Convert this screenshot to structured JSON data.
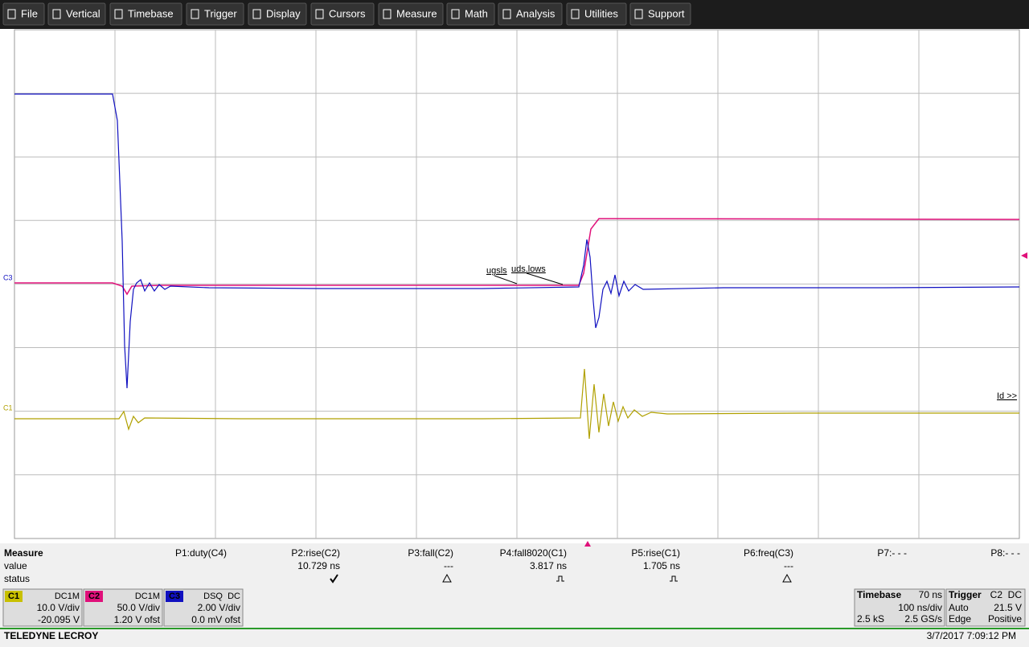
{
  "menu": [
    "File",
    "Vertical",
    "Timebase",
    "Trigger",
    "Display",
    "Cursors",
    "Measure",
    "Math",
    "Analysis",
    "Utilities",
    "Support"
  ],
  "trace_labels": {
    "c3": "C3",
    "c1": "C1",
    "ugsls": "ugsls",
    "uds_lows": "uds.lows",
    "id": "Id >>"
  },
  "measure": {
    "title": "Measure",
    "row_labels": [
      "value",
      "status"
    ],
    "params": [
      {
        "name": "P1:duty(C4)"
      },
      {
        "name": "P2:rise(C2)",
        "value": "10.729 ns"
      },
      {
        "name": "P3:fall(C2)",
        "value": "---"
      },
      {
        "name": "P4:fall8020(C1)",
        "value": "3.817 ns"
      },
      {
        "name": "P5:rise(C1)",
        "value": "1.705 ns"
      },
      {
        "name": "P6:freq(C3)",
        "value": "---"
      },
      {
        "name": "P7:- - -"
      },
      {
        "name": "P8:- - -"
      }
    ]
  },
  "channels": [
    {
      "label": "C1",
      "coupling": "DC1M",
      "scale": "10.0 V/div",
      "offset": "-20.095 V"
    },
    {
      "label": "C2",
      "coupling": "DC1M",
      "scale": "50.0 V/div",
      "offset": "1.20 V ofst"
    },
    {
      "label": "C3",
      "coupling": "DSQ  DC",
      "scale": "2.00 V/div",
      "offset": "0.0 mV ofst"
    }
  ],
  "timebase": {
    "title": "Timebase",
    "delay": "70 ns",
    "scale": "100 ns/div",
    "samples": "2.5 kS",
    "rate": "2.5 GS/s"
  },
  "trigger": {
    "title": "Trigger",
    "source": "C2  DC",
    "mode": "Auto",
    "level": "21.5 V",
    "type": "Edge",
    "slope": "Positive"
  },
  "footer": {
    "brand": "TELEDYNE LECROY",
    "datetime": "3/7/2017 7:09:12 PM"
  }
}
